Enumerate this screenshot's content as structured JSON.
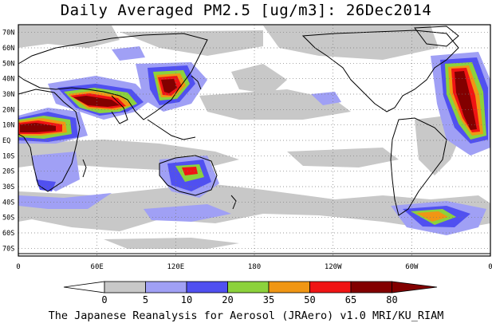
{
  "title": "Daily Averaged PM2.5 [ug/m3]: 26Dec2014",
  "footer": "The Japanese Reanalysis for Aerosol (JRAero) v1.0 MRI/KU_RIAM",
  "map": {
    "lat_labels": [
      "70N",
      "60N",
      "50N",
      "40N",
      "30N",
      "20N",
      "10N",
      "EQ",
      "10S",
      "20S",
      "30S",
      "40S",
      "50S",
      "60S",
      "70S"
    ],
    "lon_labels": [
      "0",
      "60E",
      "120E",
      "180",
      "120W",
      "60W",
      "0"
    ]
  },
  "colorbar": {
    "ticks": [
      "0",
      "5",
      "10",
      "20",
      "35",
      "50",
      "65",
      "80"
    ],
    "colors": [
      "#ffffff",
      "#c8c8c8",
      "#a0a0f5",
      "#5050f0",
      "#8cd23c",
      "#f09614",
      "#f01414",
      "#820000"
    ]
  },
  "colors": {
    "land": "#ffffff",
    "ocean_light": "#c8c8c8",
    "level_10_20": "#a0a0f5",
    "level_20_35": "#5050f0",
    "level_35_50": "#8cd23c",
    "level_50_65": "#f09614",
    "level_65_80": "#f01414",
    "level_80_plus": "#820000"
  }
}
